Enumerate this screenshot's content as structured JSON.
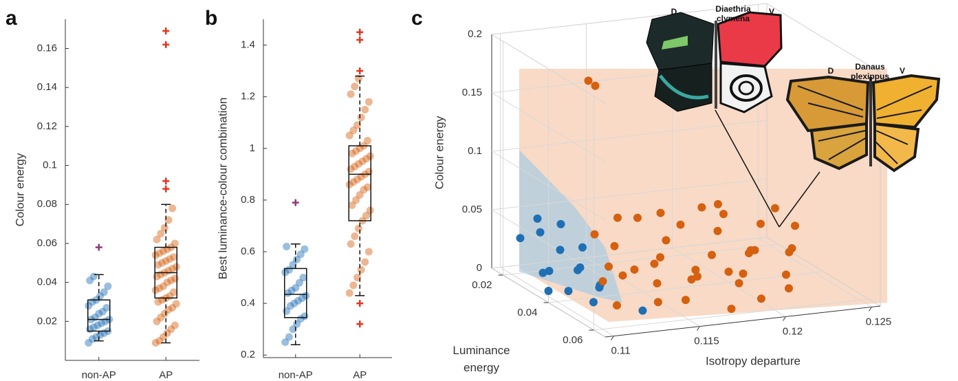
{
  "chart_data": [
    {
      "type": "box",
      "panel": "a",
      "ylabel": "Colour energy",
      "categories": [
        "non-AP",
        "AP"
      ],
      "ylim": [
        0,
        0.175
      ],
      "yticks": [
        0.02,
        0.04,
        0.06,
        0.08,
        0.1,
        0.12,
        0.14,
        0.16
      ],
      "boxes": [
        {
          "color": "#1f6fb4",
          "outlier_color": "#8b3a7a",
          "whisker_low": 0.01,
          "q1": 0.015,
          "median": 0.021,
          "q3": 0.031,
          "whisker_high": 0.044,
          "outliers": [
            0.058
          ],
          "points": [
            0.009,
            0.011,
            0.012,
            0.013,
            0.014,
            0.015,
            0.016,
            0.017,
            0.018,
            0.019,
            0.02,
            0.021,
            0.021,
            0.022,
            0.024,
            0.025,
            0.027,
            0.028,
            0.03,
            0.031,
            0.033,
            0.035,
            0.038,
            0.041,
            0.043
          ]
        },
        {
          "color": "#d5600f",
          "outlier_color": "#e8331c",
          "whisker_low": 0.009,
          "q1": 0.032,
          "median": 0.045,
          "q3": 0.058,
          "whisker_high": 0.08,
          "outliers": [
            0.088,
            0.092,
            0.162,
            0.169
          ],
          "points": [
            0.009,
            0.01,
            0.012,
            0.014,
            0.016,
            0.018,
            0.02,
            0.022,
            0.024,
            0.026,
            0.027,
            0.029,
            0.03,
            0.031,
            0.032,
            0.033,
            0.035,
            0.036,
            0.037,
            0.038,
            0.04,
            0.041,
            0.042,
            0.043,
            0.044,
            0.045,
            0.046,
            0.047,
            0.048,
            0.049,
            0.05,
            0.051,
            0.052,
            0.053,
            0.054,
            0.055,
            0.056,
            0.057,
            0.058,
            0.06,
            0.062,
            0.065,
            0.068,
            0.072,
            0.078
          ]
        }
      ]
    },
    {
      "type": "box",
      "panel": "b",
      "ylabel": "Best luminance-colour combination",
      "categories": [
        "non-AP",
        "AP"
      ],
      "ylim": [
        0.19,
        1.5
      ],
      "yticks": [
        0.2,
        0.4,
        0.6,
        0.8,
        1,
        1.2,
        1.4
      ],
      "boxes": [
        {
          "color": "#1f6fb4",
          "outlier_color": "#8b3a7a",
          "whisker_low": 0.24,
          "q1": 0.345,
          "median": 0.435,
          "q3": 0.535,
          "whisker_high": 0.63,
          "outliers": [
            0.79
          ],
          "points": [
            0.25,
            0.27,
            0.3,
            0.32,
            0.34,
            0.35,
            0.37,
            0.39,
            0.4,
            0.41,
            0.42,
            0.43,
            0.44,
            0.45,
            0.46,
            0.48,
            0.5,
            0.52,
            0.53,
            0.55,
            0.57,
            0.59,
            0.61,
            0.62
          ]
        },
        {
          "color": "#d5600f",
          "outlier_color": "#e8331c",
          "whisker_low": 0.43,
          "q1": 0.72,
          "median": 0.9,
          "q3": 1.01,
          "whisker_high": 1.28,
          "outliers": [
            0.32,
            0.4,
            1.3,
            1.42,
            1.45
          ],
          "points": [
            0.44,
            0.47,
            0.5,
            0.53,
            0.56,
            0.6,
            0.63,
            0.66,
            0.69,
            0.72,
            0.74,
            0.76,
            0.78,
            0.8,
            0.82,
            0.84,
            0.85,
            0.86,
            0.87,
            0.88,
            0.89,
            0.9,
            0.91,
            0.92,
            0.93,
            0.94,
            0.95,
            0.96,
            0.97,
            0.98,
            0.99,
            1.0,
            1.01,
            1.03,
            1.05,
            1.07,
            1.09,
            1.12,
            1.15,
            1.18,
            1.21,
            1.24,
            1.27
          ]
        }
      ]
    },
    {
      "type": "scatter3d",
      "panel": "c",
      "xlabel": "Isotropy departure",
      "ylabel": "Luminance energy",
      "zlabel": "Colour energy",
      "xlim": [
        0.1095,
        0.1255
      ],
      "xticks": [
        0.11,
        0.115,
        0.12,
        0.125
      ],
      "ylim": [
        0.015,
        0.065
      ],
      "yticks": [
        0.02,
        0.04,
        0.06
      ],
      "zlim": [
        0,
        0.2
      ],
      "zticks": [
        0,
        0.05,
        0.1,
        0.15,
        0.2
      ],
      "annotations": [
        "D",
        "Diaethria clymena",
        "V",
        "D",
        "Danaus plexippus",
        "V"
      ],
      "series": [
        {
          "color": "#1f6fb4",
          "x": [
            0.1095,
            0.11,
            0.1102,
            0.1105,
            0.1108,
            0.111,
            0.1112,
            0.1115,
            0.1118,
            0.112,
            0.1122,
            0.1125,
            0.1128,
            0.113,
            0.1105,
            0.1115
          ],
          "y": [
            0.04,
            0.045,
            0.035,
            0.03,
            0.05,
            0.025,
            0.04,
            0.03,
            0.045,
            0.035,
            0.025,
            0.04,
            0.03,
            0.055,
            0.02,
            0.02
          ],
          "values": [
            0.01,
            0.015,
            0.02,
            0.012,
            0.01,
            0.04,
            0.025,
            0.03,
            0.015,
            0.02,
            0.045,
            0.01,
            0.03,
            0.005,
            0.03,
            0.045
          ]
        },
        {
          "color": "#d5600f",
          "x": [
            0.1115,
            0.112,
            0.1125,
            0.113,
            0.1135,
            0.114,
            0.1145,
            0.115,
            0.1155,
            0.116,
            0.1165,
            0.117,
            0.1175,
            0.118,
            0.1185,
            0.119,
            0.1195,
            0.12,
            0.1205,
            0.121,
            0.1215,
            0.122,
            0.1225,
            0.123,
            0.1235,
            0.124,
            0.1245,
            0.1135,
            0.1155,
            0.1175,
            0.1195,
            0.1215,
            0.116,
            0.118,
            0.12,
            0.122,
            0.1145,
            0.117,
            0.119,
            0.121,
            0.1138,
            0.1142
          ],
          "y": [
            0.055,
            0.045,
            0.05,
            0.04,
            0.058,
            0.035,
            0.05,
            0.045,
            0.055,
            0.04,
            0.05,
            0.035,
            0.045,
            0.055,
            0.03,
            0.04,
            0.05,
            0.035,
            0.045,
            0.03,
            0.04,
            0.05,
            0.035,
            0.045,
            0.04,
            0.03,
            0.035,
            0.03,
            0.025,
            0.06,
            0.058,
            0.055,
            0.03,
            0.025,
            0.028,
            0.02,
            0.04,
            0.048,
            0.052,
            0.042,
            0.025,
            0.025
          ],
          "values": [
            0.012,
            0.02,
            0.03,
            0.025,
            0.015,
            0.035,
            0.02,
            0.03,
            0.01,
            0.028,
            0.02,
            0.035,
            0.015,
            0.03,
            0.04,
            0.025,
            0.02,
            0.038,
            0.03,
            0.045,
            0.025,
            0.015,
            0.04,
            0.03,
            0.02,
            0.045,
            0.035,
            0.04,
            0.045,
            0.005,
            0.008,
            0.01,
            0.05,
            0.045,
            0.05,
            0.04,
            0.02,
            0.025,
            0.015,
            0.028,
            0.165,
            0.16
          ]
        }
      ]
    }
  ]
}
